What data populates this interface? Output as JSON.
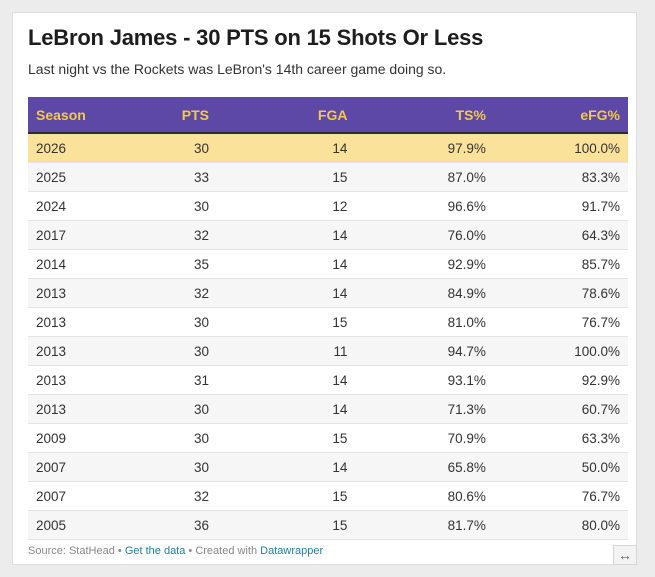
{
  "title": "LeBron James - 30 PTS on 15 Shots Or Less",
  "subtitle": "Last night vs the Rockets was LeBron's 14th career game doing so.",
  "colors": {
    "header_bg": "#5e48a6",
    "header_text": "#f2c94c",
    "highlight": "#fbe29b"
  },
  "table": {
    "headers": [
      "Season",
      "PTS",
      "FGA",
      "TS%",
      "eFG%"
    ],
    "rows": [
      {
        "season": "2026",
        "pts": "30",
        "fga": "14",
        "ts": "97.9%",
        "efg": "100.0%",
        "highlight": true
      },
      {
        "season": "2025",
        "pts": "33",
        "fga": "15",
        "ts": "87.0%",
        "efg": "83.3%"
      },
      {
        "season": "2024",
        "pts": "30",
        "fga": "12",
        "ts": "96.6%",
        "efg": "91.7%"
      },
      {
        "season": "2017",
        "pts": "32",
        "fga": "14",
        "ts": "76.0%",
        "efg": "64.3%"
      },
      {
        "season": "2014",
        "pts": "35",
        "fga": "14",
        "ts": "92.9%",
        "efg": "85.7%"
      },
      {
        "season": "2013",
        "pts": "32",
        "fga": "14",
        "ts": "84.9%",
        "efg": "78.6%"
      },
      {
        "season": "2013",
        "pts": "30",
        "fga": "15",
        "ts": "81.0%",
        "efg": "76.7%"
      },
      {
        "season": "2013",
        "pts": "30",
        "fga": "11",
        "ts": "94.7%",
        "efg": "100.0%"
      },
      {
        "season": "2013",
        "pts": "31",
        "fga": "14",
        "ts": "93.1%",
        "efg": "92.9%"
      },
      {
        "season": "2013",
        "pts": "30",
        "fga": "14",
        "ts": "71.3%",
        "efg": "60.7%"
      },
      {
        "season": "2009",
        "pts": "30",
        "fga": "15",
        "ts": "70.9%",
        "efg": "63.3%"
      },
      {
        "season": "2007",
        "pts": "30",
        "fga": "14",
        "ts": "65.8%",
        "efg": "50.0%"
      },
      {
        "season": "2007",
        "pts": "32",
        "fga": "15",
        "ts": "80.6%",
        "efg": "76.7%"
      },
      {
        "season": "2005",
        "pts": "36",
        "fga": "15",
        "ts": "81.7%",
        "efg": "80.0%"
      }
    ]
  },
  "footer": {
    "source": "Source: StatHead",
    "sep1": " • ",
    "get_data": "Get the data",
    "sep2": " • Created with ",
    "tool": "Datawrapper"
  },
  "expand_icon": "↔"
}
